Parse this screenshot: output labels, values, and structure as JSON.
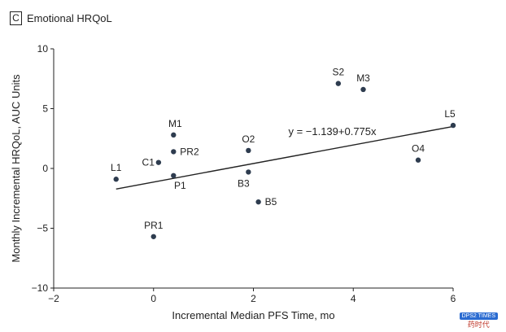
{
  "panel": {
    "letter": "C",
    "title": "Emotional HRQoL"
  },
  "chart_data": {
    "type": "scatter",
    "title": "Emotional HRQoL",
    "xlabel": "Incremental Median PFS Time, mo",
    "ylabel": "Monthly Incremental HRQoL, AUC Units",
    "xlim": [
      -2,
      6
    ],
    "ylim": [
      -10,
      10
    ],
    "xticks": [
      -2,
      0,
      2,
      4,
      6
    ],
    "yticks": [
      -10,
      -5,
      0,
      5,
      10
    ],
    "grid": false,
    "points": [
      {
        "label": "S2",
        "x": 3.7,
        "y": 7.1
      },
      {
        "label": "M3",
        "x": 4.2,
        "y": 6.6
      },
      {
        "label": "L5",
        "x": 6.0,
        "y": 3.6
      },
      {
        "label": "M1",
        "x": 0.4,
        "y": 2.8
      },
      {
        "label": "O2",
        "x": 1.9,
        "y": 1.5
      },
      {
        "label": "PR2",
        "x": 0.4,
        "y": 1.4
      },
      {
        "label": "C1",
        "x": 0.1,
        "y": 0.5
      },
      {
        "label": "O4",
        "x": 5.3,
        "y": 0.7
      },
      {
        "label": "L1",
        "x": -0.75,
        "y": -0.9
      },
      {
        "label": "P1",
        "x": 0.4,
        "y": -0.6
      },
      {
        "label": "B3",
        "x": 1.9,
        "y": -0.3
      },
      {
        "label": "B5",
        "x": 2.1,
        "y": -2.8
      },
      {
        "label": "PR1",
        "x": 0.0,
        "y": -5.7
      }
    ],
    "regression": {
      "label": "y = −1.139+0.775x",
      "intercept": -1.139,
      "slope": 0.775,
      "x_range": [
        -0.75,
        6.0
      ]
    }
  },
  "watermark": {
    "top": "DPS2 TIMES",
    "bottom": "药时代"
  },
  "colors": {
    "axis": "#222222",
    "point": "#2e3c4f",
    "line": "#222222"
  }
}
